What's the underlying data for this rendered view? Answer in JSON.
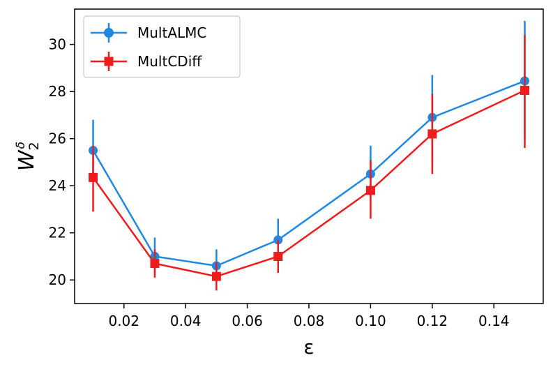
{
  "chart_data": {
    "type": "line",
    "title": "",
    "xlabel": "ε",
    "ylabel_base": "W",
    "ylabel_sub": "2",
    "ylabel_sup": "δ",
    "xlim": [
      0.004,
      0.156
    ],
    "ylim": [
      19.0,
      31.5
    ],
    "xticks": [
      0.02,
      0.04,
      0.06,
      0.08,
      0.1,
      0.12,
      0.14
    ],
    "xtick_labels": [
      "0.02",
      "0.04",
      "0.06",
      "0.08",
      "0.10",
      "0.12",
      "0.14"
    ],
    "yticks": [
      20,
      22,
      24,
      26,
      28,
      30
    ],
    "ytick_labels": [
      "20",
      "22",
      "24",
      "26",
      "28",
      "30"
    ],
    "grid": false,
    "legend_position": "top-left",
    "x": [
      0.01,
      0.03,
      0.05,
      0.07,
      0.1,
      0.12,
      0.15
    ],
    "series": [
      {
        "name": "MultALMC",
        "color": "#1f88e0",
        "marker": "circle",
        "values": [
          25.5,
          21.0,
          20.6,
          21.7,
          24.5,
          26.9,
          28.45
        ],
        "err_low": [
          24.2,
          20.3,
          20.0,
          21.0,
          23.4,
          25.1,
          26.0
        ],
        "err_high": [
          26.8,
          21.8,
          21.3,
          22.6,
          25.7,
          28.7,
          31.0
        ]
      },
      {
        "name": "MultCDiff",
        "color": "#ee1c1c",
        "marker": "square",
        "values": [
          24.35,
          20.7,
          20.15,
          21.0,
          23.8,
          26.2,
          28.05
        ],
        "err_low": [
          22.9,
          20.1,
          19.55,
          20.3,
          22.6,
          24.5,
          25.6
        ],
        "err_high": [
          25.7,
          21.3,
          20.75,
          21.7,
          25.1,
          27.9,
          30.4
        ]
      }
    ]
  }
}
